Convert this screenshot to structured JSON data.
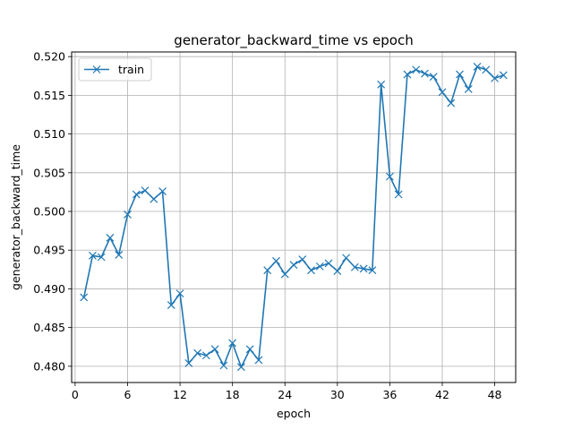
{
  "chart_data": {
    "type": "line",
    "title": "generator_backward_time vs epoch",
    "xlabel": "epoch",
    "ylabel": "generator_backward_time",
    "xlim": [
      -0.4,
      50.4
    ],
    "ylim": [
      0.4779,
      0.5206
    ],
    "xticks": [
      0,
      6,
      12,
      18,
      24,
      30,
      36,
      42,
      48
    ],
    "yticks": [
      0.48,
      0.485,
      0.49,
      0.495,
      0.5,
      0.505,
      0.51,
      0.515,
      0.52
    ],
    "ytick_labels": [
      "0.480",
      "0.485",
      "0.490",
      "0.495",
      "0.500",
      "0.505",
      "0.510",
      "0.515",
      "0.520"
    ],
    "grid": true,
    "legend_position": "top-left",
    "color": "#1f77b4",
    "marker": "x",
    "series": [
      {
        "name": "train",
        "x": [
          1,
          2,
          3,
          4,
          5,
          6,
          7,
          8,
          9,
          10,
          11,
          12,
          13,
          14,
          15,
          16,
          17,
          18,
          19,
          20,
          21,
          22,
          23,
          24,
          25,
          26,
          27,
          28,
          29,
          30,
          31,
          32,
          33,
          34,
          35,
          36,
          37,
          38,
          39,
          40,
          41,
          42,
          43,
          44,
          45,
          46,
          47,
          48,
          49
        ],
        "values": [
          0.4889,
          0.4943,
          0.4941,
          0.4966,
          0.4944,
          0.4996,
          0.5022,
          0.5027,
          0.5016,
          0.5026,
          0.4879,
          0.4894,
          0.4804,
          0.4817,
          0.4814,
          0.4822,
          0.4801,
          0.483,
          0.4799,
          0.4822,
          0.4808,
          0.4924,
          0.4936,
          0.4919,
          0.4931,
          0.4938,
          0.4924,
          0.4929,
          0.4933,
          0.4923,
          0.494,
          0.4928,
          0.4926,
          0.4924,
          0.5164,
          0.5045,
          0.5022,
          0.5177,
          0.5183,
          0.5178,
          0.5174,
          0.5154,
          0.514,
          0.5177,
          0.5158,
          0.5187,
          0.5183,
          0.5172,
          0.5176
        ]
      }
    ]
  }
}
